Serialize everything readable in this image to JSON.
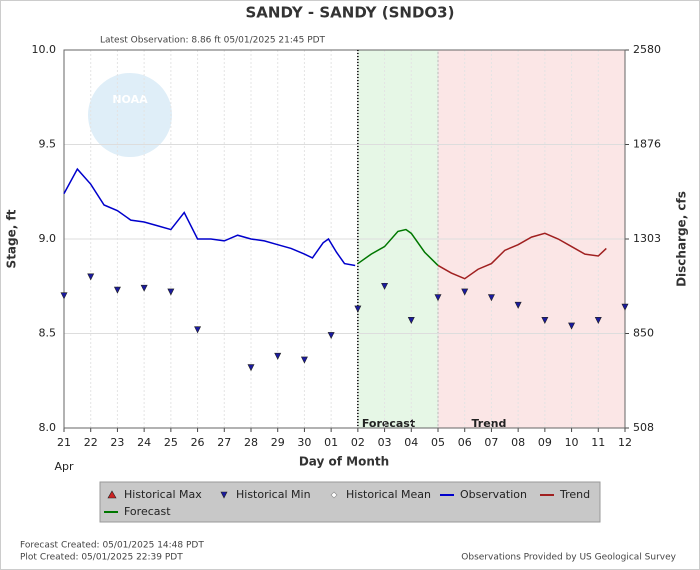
{
  "chart_data": {
    "type": "line",
    "title": "SANDY - SANDY  (SNDO3)",
    "subtitle": "Latest Observation: 8.86 ft 05/01/2025 21:45 PDT",
    "logo": "NOAA",
    "ylabel": "Stage, ft",
    "y2label": "Discharge, cfs",
    "xlabel": "Day of Month",
    "month_label": "Apr",
    "xlim": [
      0,
      21
    ],
    "xticks": [
      {
        "value": 0,
        "label": "21"
      },
      {
        "value": 1,
        "label": "22"
      },
      {
        "value": 2,
        "label": "23"
      },
      {
        "value": 3,
        "label": "24"
      },
      {
        "value": 4,
        "label": "25"
      },
      {
        "value": 5,
        "label": "26"
      },
      {
        "value": 6,
        "label": "27"
      },
      {
        "value": 7,
        "label": "28"
      },
      {
        "value": 8,
        "label": "29"
      },
      {
        "value": 9,
        "label": "30"
      },
      {
        "value": 10,
        "label": "01"
      },
      {
        "value": 11,
        "label": "02"
      },
      {
        "value": 12,
        "label": "03"
      },
      {
        "value": 13,
        "label": "04"
      },
      {
        "value": 14,
        "label": "05"
      },
      {
        "value": 15,
        "label": "06"
      },
      {
        "value": 16,
        "label": "07"
      },
      {
        "value": 17,
        "label": "08"
      },
      {
        "value": 18,
        "label": "09"
      },
      {
        "value": 19,
        "label": "10"
      },
      {
        "value": 20,
        "label": "11"
      },
      {
        "value": 21,
        "label": "12"
      }
    ],
    "ylim": [
      8,
      10
    ],
    "yticks": [
      {
        "value": 8,
        "label": "8.0"
      },
      {
        "value": 8.5,
        "label": "8.5"
      },
      {
        "value": 9,
        "label": "9.0"
      },
      {
        "value": 9.5,
        "label": "9.5"
      },
      {
        "value": 10,
        "label": "10.0"
      }
    ],
    "y2lim": [
      508,
      2580
    ],
    "y2ticks": [
      508,
      850,
      1303,
      1876,
      2580
    ],
    "grid": true,
    "now_x": 11,
    "regions": [
      {
        "label": "Forecast",
        "x": [
          11,
          14
        ],
        "color": "#e6f7e6"
      },
      {
        "label": "Trend",
        "x": [
          14,
          21
        ],
        "color": "#fbe6e6"
      }
    ],
    "series": [
      {
        "name": "Historical Max",
        "color": "#cc2222",
        "marker": "triangle-up",
        "x": [],
        "values": []
      },
      {
        "name": "Historical Min",
        "color": "#1a1aa0",
        "marker": "triangle-down",
        "x": [
          0,
          1,
          2,
          3,
          4,
          5,
          7,
          8,
          9,
          10,
          11,
          12,
          13,
          14,
          15,
          16,
          17,
          18,
          19,
          20,
          21
        ],
        "values": [
          8.7,
          8.8,
          8.73,
          8.74,
          8.72,
          8.52,
          8.32,
          8.38,
          8.36,
          8.49,
          8.63,
          8.75,
          8.57,
          8.69,
          8.72,
          8.69,
          8.65,
          8.57,
          8.54,
          8.57,
          8.64
        ]
      },
      {
        "name": "Historical Mean",
        "color": "#888888",
        "marker": "diamond",
        "x": [],
        "values": []
      },
      {
        "name": "Observation",
        "color": "#0000cc",
        "marker": "line",
        "x": [
          0,
          0.5,
          1,
          1.5,
          2,
          2.5,
          3,
          3.5,
          4,
          4.5,
          5,
          5.5,
          6,
          6.5,
          7,
          7.5,
          8,
          8.5,
          9,
          9.3,
          9.7,
          9.9,
          10.2,
          10.5,
          10.9
        ],
        "values": [
          9.24,
          9.37,
          9.29,
          9.18,
          9.15,
          9.1,
          9.09,
          9.07,
          9.05,
          9.14,
          9.0,
          9.0,
          8.99,
          9.02,
          9.0,
          8.99,
          8.97,
          8.95,
          8.92,
          8.9,
          8.98,
          9.0,
          8.93,
          8.87,
          8.86
        ]
      },
      {
        "name": "Trend",
        "color": "#a02020",
        "marker": "line",
        "x": [
          14,
          14.5,
          15,
          15.5,
          16,
          16.5,
          17,
          17.5,
          18,
          18.5,
          19,
          19.5,
          20,
          20.3
        ],
        "values": [
          8.86,
          8.82,
          8.79,
          8.84,
          8.87,
          8.94,
          8.97,
          9.01,
          9.03,
          9.0,
          8.96,
          8.92,
          8.91,
          8.95
        ]
      },
      {
        "name": "Forecast",
        "color": "#007700",
        "marker": "line",
        "x": [
          11,
          11.5,
          12,
          12.5,
          12.8,
          13,
          13.5,
          14
        ],
        "values": [
          8.87,
          8.92,
          8.96,
          9.04,
          9.05,
          9.03,
          8.93,
          8.86
        ]
      }
    ],
    "footer_left": [
      "Forecast Created: 05/01/2025 14:48 PDT",
      "Plot Created: 05/01/2025 22:39 PDT"
    ],
    "footer_right": "Observations Provided by US Geological Survey"
  }
}
